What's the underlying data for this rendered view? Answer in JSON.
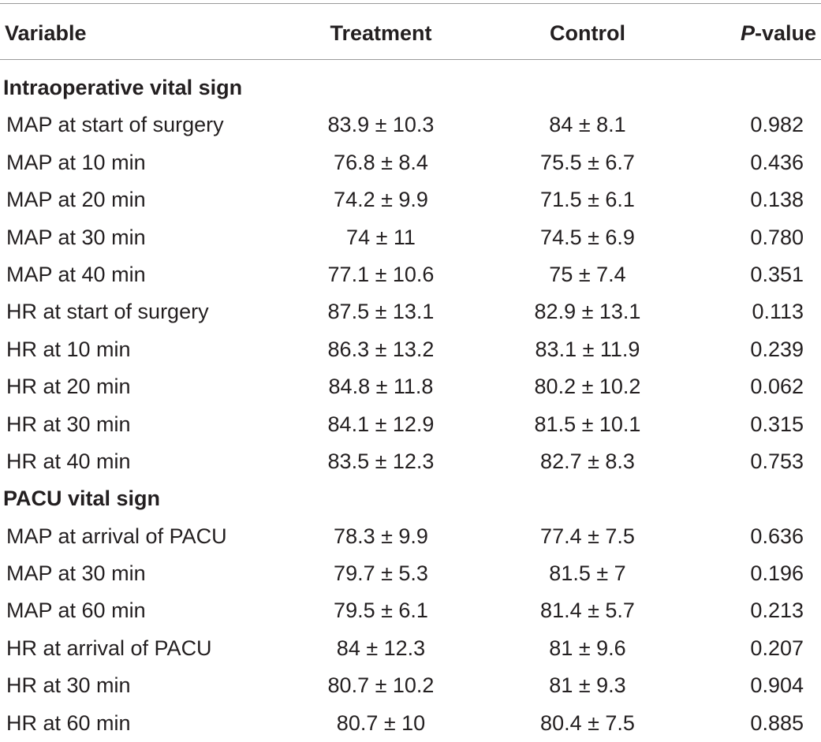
{
  "table": {
    "headers": {
      "variable": "Variable",
      "treatment": "Treatment",
      "control": "Control",
      "p_italic": "P",
      "p_rest": "-value"
    },
    "sections": [
      {
        "title": "Intraoperative vital sign",
        "rows": [
          {
            "variable": "MAP at start of surgery",
            "treatment": "83.9 ± 10.3",
            "control": "84 ± 8.1",
            "p": "0.982"
          },
          {
            "variable": "MAP at 10 min",
            "treatment": "76.8 ± 8.4",
            "control": "75.5 ± 6.7",
            "p": "0.436"
          },
          {
            "variable": "MAP at 20 min",
            "treatment": "74.2 ± 9.9",
            "control": "71.5 ± 6.1",
            "p": "0.138"
          },
          {
            "variable": "MAP at 30 min",
            "treatment": "74 ± 11",
            "control": "74.5 ± 6.9",
            "p": "0.780"
          },
          {
            "variable": "MAP at 40 min",
            "treatment": "77.1 ± 10.6",
            "control": "75 ± 7.4",
            "p": "0.351"
          },
          {
            "variable": "HR at start of surgery",
            "treatment": "87.5 ± 13.1",
            "control": "82.9 ± 13.1",
            "p": "0.113"
          },
          {
            "variable": "HR at 10 min",
            "treatment": "86.3 ± 13.2",
            "control": "83.1 ± 11.9",
            "p": "0.239"
          },
          {
            "variable": "HR at 20 min",
            "treatment": "84.8 ± 11.8",
            "control": "80.2 ± 10.2",
            "p": "0.062"
          },
          {
            "variable": "HR at 30 min",
            "treatment": "84.1 ± 12.9",
            "control": "81.5 ± 10.1",
            "p": "0.315"
          },
          {
            "variable": "HR at 40 min",
            "treatment": "83.5 ± 12.3",
            "control": "82.7 ± 8.3",
            "p": "0.753"
          }
        ]
      },
      {
        "title": "PACU vital sign",
        "rows": [
          {
            "variable": "MAP at arrival of PACU",
            "treatment": "78.3 ± 9.9",
            "control": "77.4 ± 7.5",
            "p": "0.636"
          },
          {
            "variable": "MAP at 30 min",
            "treatment": "79.7 ± 5.3",
            "control": "81.5 ± 7",
            "p": "0.196"
          },
          {
            "variable": "MAP at 60 min",
            "treatment": "79.5 ± 6.1",
            "control": "81.4 ± 5.7",
            "p": "0.213"
          },
          {
            "variable": "HR at arrival of PACU",
            "treatment": "84 ± 12.3",
            "control": "81 ± 9.6",
            "p": "0.207"
          },
          {
            "variable": "HR at 30 min",
            "treatment": "80.7 ± 10.2",
            "control": "81 ± 9.3",
            "p": "0.904"
          },
          {
            "variable": "HR at 60 min",
            "treatment": "80.7 ± 10",
            "control": "80.4 ± 7.5",
            "p": "0.885"
          }
        ]
      }
    ]
  }
}
